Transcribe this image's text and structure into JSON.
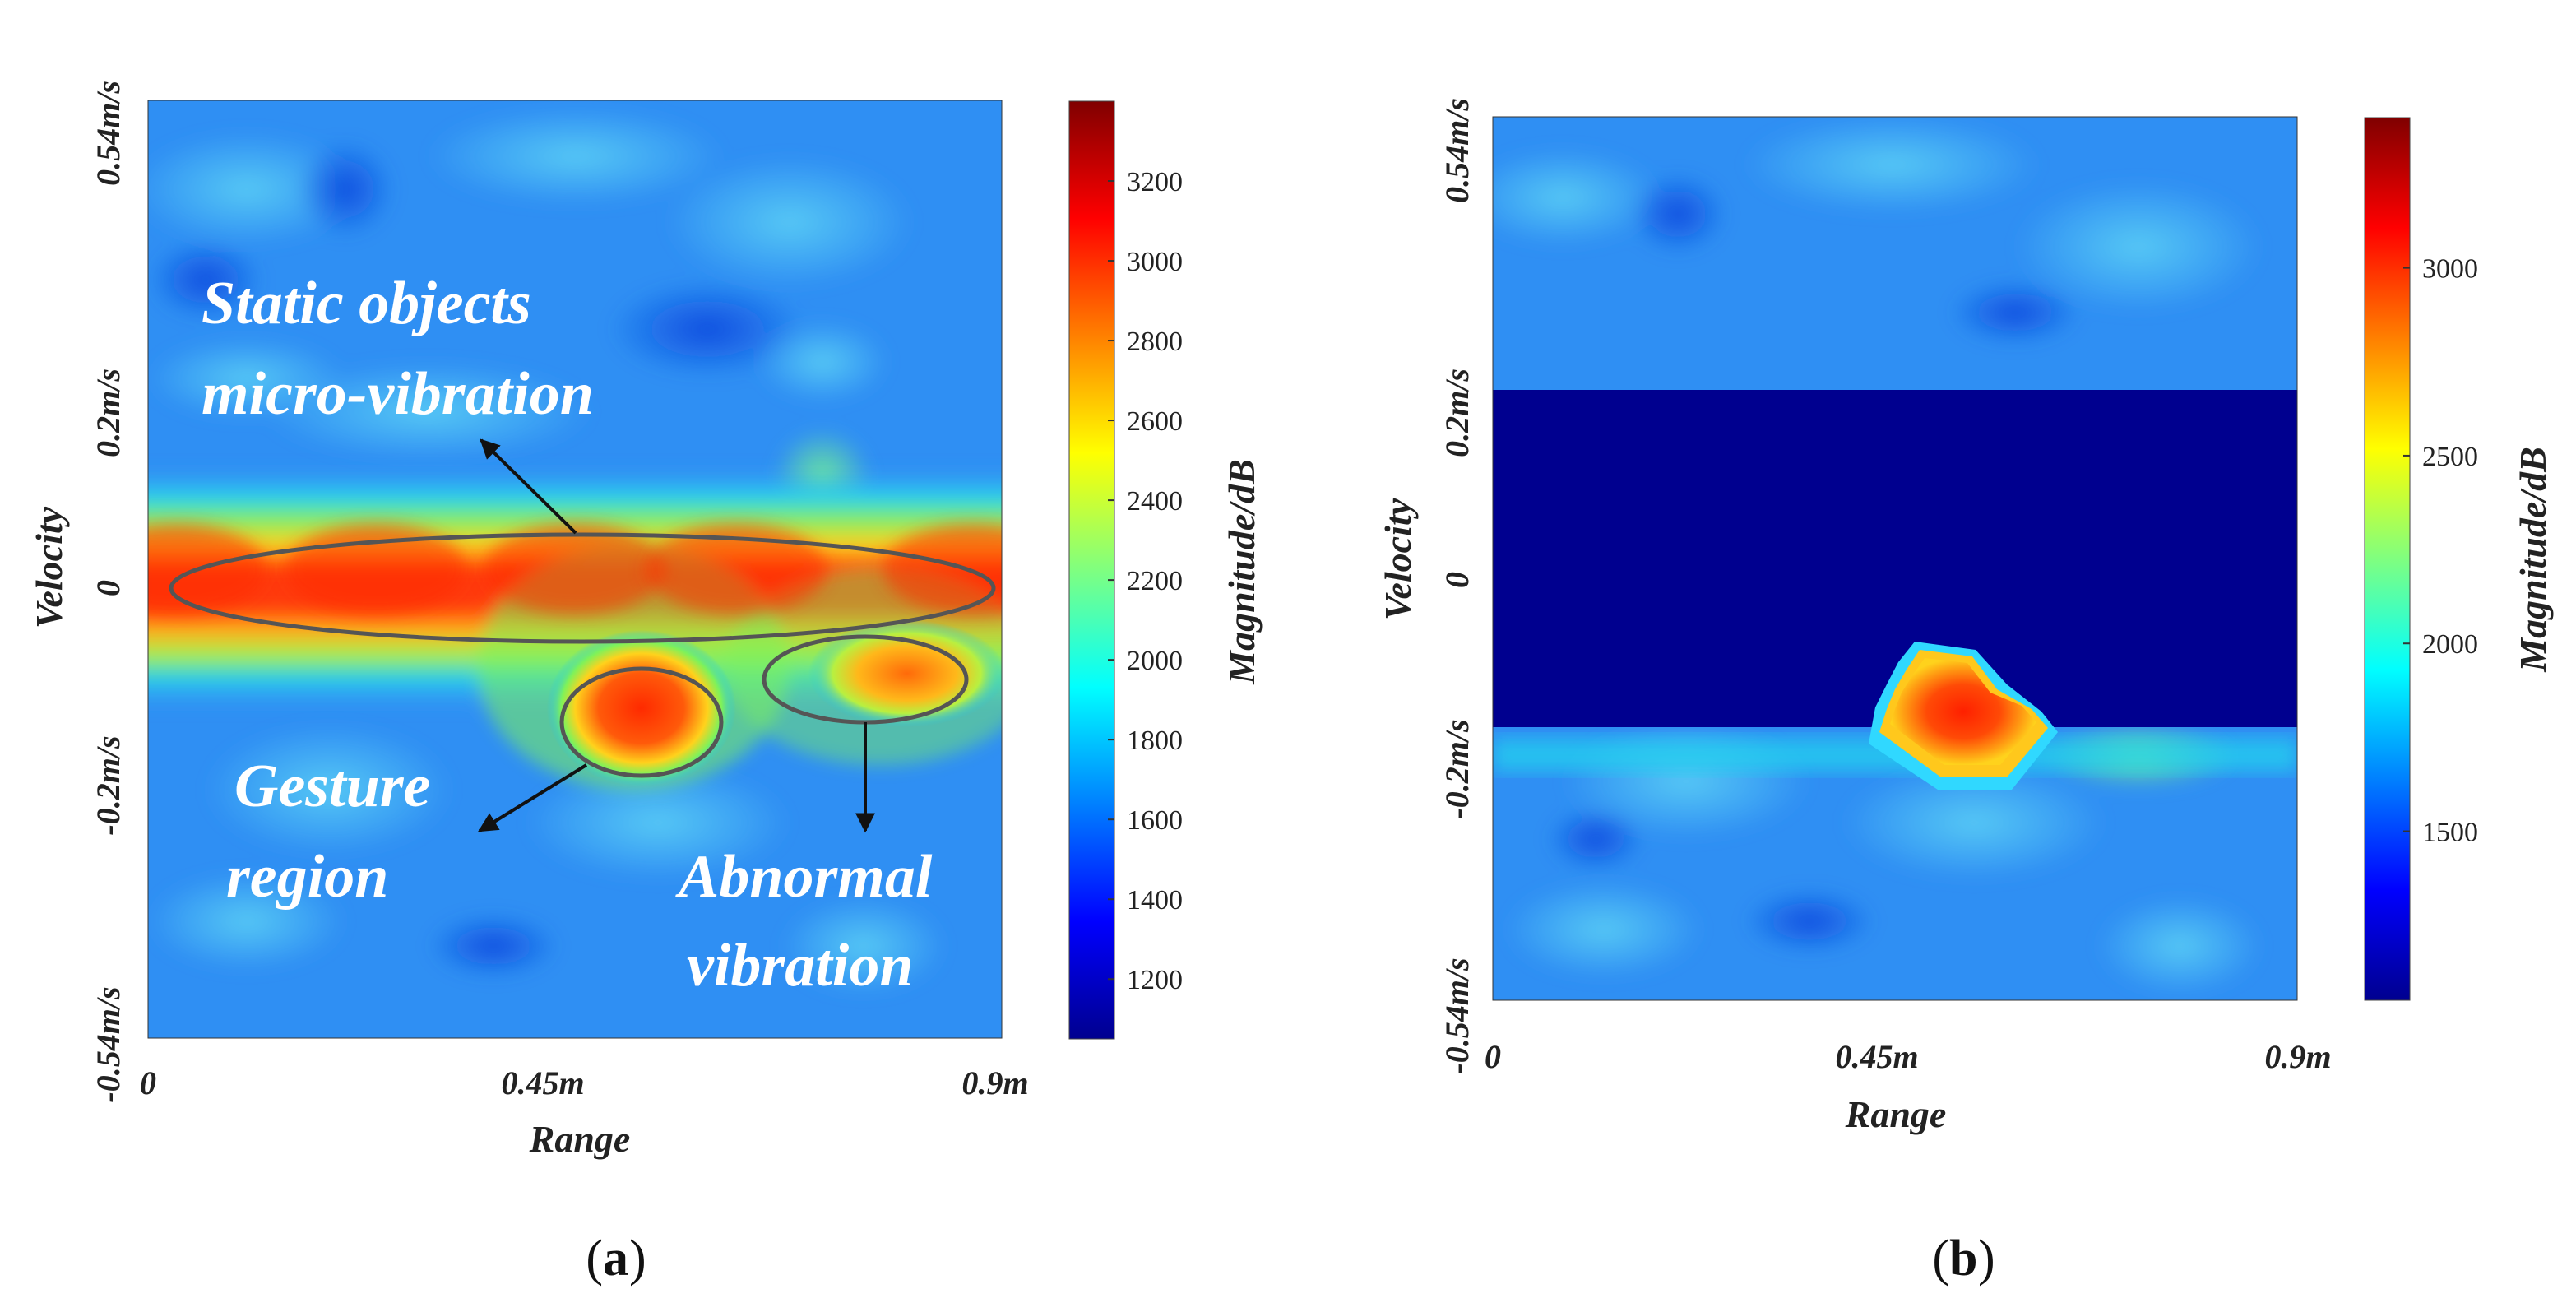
{
  "chart_data": [
    {
      "type": "heatmap",
      "panel_label": "a",
      "xlabel": "Range",
      "ylabel": "Velocity",
      "x_ticks": [
        "0",
        "0.45m",
        "0.9m"
      ],
      "y_ticks": [
        "0.54m/s",
        "0.2m/s",
        "0",
        "-0.2m/s",
        "-0.54m/s"
      ],
      "xlim": [
        0,
        0.9
      ],
      "ylim": [
        -0.54,
        0.54
      ],
      "colorbar": {
        "label": "Magnitude/dB",
        "range": [
          1050,
          3400
        ],
        "ticks": [
          "1200",
          "1400",
          "1600",
          "1800",
          "2000",
          "2200",
          "2400",
          "2600",
          "2800",
          "3000",
          "3200"
        ]
      },
      "hotspots": [
        {
          "region": "static-objects-band",
          "range": [
            0,
            0.9
          ],
          "velocity": [
            -0.08,
            0.08
          ],
          "magnitude": 3300
        },
        {
          "region": "gesture",
          "range_center": 0.52,
          "velocity_center": -0.16,
          "magnitude": 3300
        },
        {
          "region": "abnormal-vibration",
          "range_center": 0.8,
          "velocity_center": -0.12,
          "magnitude": 2900
        }
      ],
      "annotations": [
        {
          "line1": "Static objects",
          "line2": "micro-vibration"
        },
        {
          "line1": "Gesture",
          "line2": "region"
        },
        {
          "line1": "Abnormal",
          "line2": "vibration"
        }
      ]
    },
    {
      "type": "heatmap",
      "panel_label": "b",
      "xlabel": "Range",
      "ylabel": "Velocity",
      "x_ticks": [
        "0",
        "0.45m",
        "0.9m"
      ],
      "y_ticks": [
        "0.54m/s",
        "0.2m/s",
        "0",
        "-0.2m/s",
        "-0.54m/s"
      ],
      "xlim": [
        0,
        0.9
      ],
      "ylim": [
        -0.54,
        0.54
      ],
      "colorbar": {
        "label": "Magnitude/dB",
        "range": [
          1050,
          3400
        ],
        "ticks": [
          "1500",
          "2000",
          "2500",
          "3000"
        ]
      },
      "masked_band": {
        "velocity": [
          -0.18,
          0.22
        ],
        "magnitude": 1050
      },
      "hotspots": [
        {
          "region": "gesture",
          "range_center": 0.51,
          "velocity_center": -0.16,
          "magnitude": 3300
        }
      ]
    }
  ]
}
